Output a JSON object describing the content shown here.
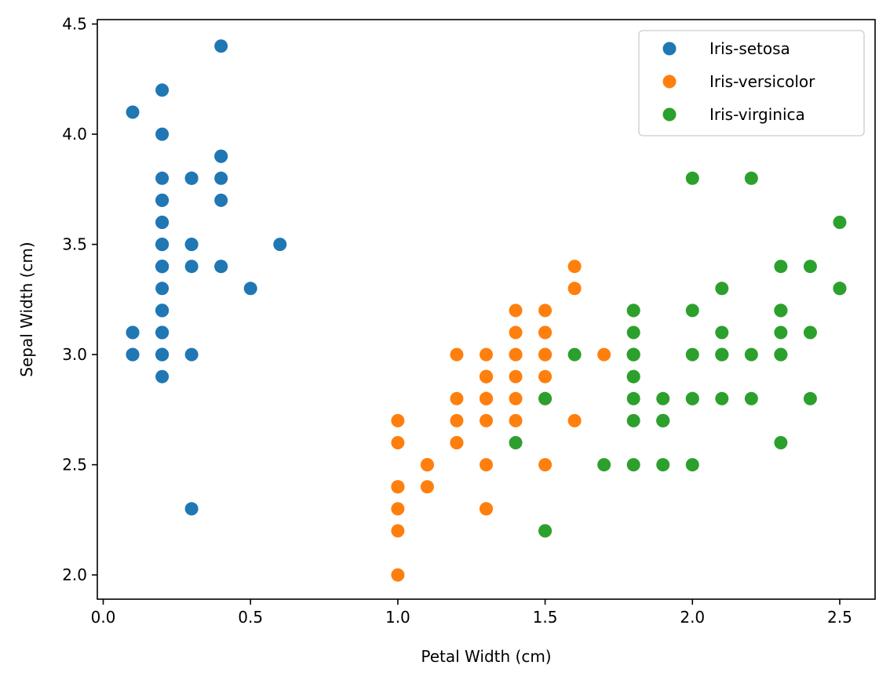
{
  "chart_data": {
    "type": "scatter",
    "title": "",
    "xlabel": "Petal Width (cm)",
    "ylabel": "Sepal Width (cm)",
    "xlim": [
      -0.02,
      2.62
    ],
    "ylim": [
      1.89,
      4.52
    ],
    "xticks": [
      "0.0",
      "0.5",
      "1.0",
      "1.5",
      "2.0",
      "2.5"
    ],
    "yticks": [
      "2.0",
      "2.5",
      "3.0",
      "3.5",
      "4.0",
      "4.5"
    ],
    "grid": false,
    "legend_position": "top-right",
    "series": [
      {
        "name": "Iris-setosa",
        "color": "#1f77b4",
        "x": [
          0.2,
          0.2,
          0.2,
          0.2,
          0.2,
          0.4,
          0.3,
          0.2,
          0.2,
          0.1,
          0.2,
          0.2,
          0.1,
          0.1,
          0.2,
          0.4,
          0.4,
          0.3,
          0.3,
          0.3,
          0.2,
          0.4,
          0.2,
          0.5,
          0.2,
          0.2,
          0.4,
          0.2,
          0.2,
          0.2,
          0.2,
          0.4,
          0.1,
          0.2,
          0.2,
          0.2,
          0.2,
          0.1,
          0.2,
          0.2,
          0.3,
          0.3,
          0.2,
          0.6,
          0.4,
          0.3,
          0.2,
          0.2,
          0.2,
          0.2
        ],
        "y": [
          3.5,
          3.0,
          3.2,
          3.1,
          3.6,
          3.9,
          3.4,
          3.4,
          2.9,
          3.1,
          3.7,
          3.4,
          3.0,
          3.0,
          4.0,
          4.4,
          3.9,
          3.5,
          3.8,
          3.8,
          3.4,
          3.7,
          3.6,
          3.3,
          3.4,
          3.0,
          3.4,
          3.5,
          3.4,
          3.2,
          3.1,
          3.4,
          4.1,
          4.2,
          3.1,
          3.2,
          3.5,
          3.1,
          3.0,
          3.4,
          3.5,
          2.3,
          3.2,
          3.5,
          3.8,
          3.0,
          3.8,
          3.2,
          3.7,
          3.3
        ]
      },
      {
        "name": "Iris-versicolor",
        "color": "#ff7f0e",
        "x": [
          1.4,
          1.5,
          1.5,
          1.3,
          1.5,
          1.3,
          1.6,
          1.0,
          1.3,
          1.4,
          1.0,
          1.5,
          1.0,
          1.4,
          1.3,
          1.4,
          1.5,
          1.0,
          1.5,
          1.1,
          1.8,
          1.3,
          1.5,
          1.2,
          1.3,
          1.4,
          1.4,
          1.7,
          1.5,
          1.0,
          1.1,
          1.0,
          1.2,
          1.6,
          1.5,
          1.6,
          1.5,
          1.3,
          1.3,
          1.3,
          1.2,
          1.4,
          1.2,
          1.0,
          1.3,
          1.2,
          1.3,
          1.3,
          1.1,
          1.3
        ],
        "y": [
          3.2,
          3.2,
          3.1,
          2.3,
          2.8,
          2.8,
          3.3,
          2.4,
          2.9,
          2.7,
          2.0,
          3.0,
          2.2,
          2.9,
          2.9,
          3.1,
          3.0,
          2.7,
          2.2,
          2.5,
          3.2,
          2.8,
          2.5,
          2.8,
          2.9,
          3.0,
          2.8,
          3.0,
          2.9,
          2.6,
          2.4,
          2.4,
          2.7,
          2.7,
          3.0,
          3.4,
          3.1,
          2.3,
          3.0,
          2.5,
          2.6,
          3.0,
          2.6,
          2.3,
          2.7,
          3.0,
          2.9,
          2.9,
          2.5,
          2.8
        ]
      },
      {
        "name": "Iris-virginica",
        "color": "#2ca02c",
        "x": [
          2.5,
          1.9,
          2.1,
          1.8,
          2.2,
          2.1,
          1.7,
          1.8,
          1.8,
          2.5,
          2.0,
          1.9,
          2.1,
          2.0,
          2.4,
          2.3,
          1.8,
          2.2,
          2.3,
          1.5,
          2.3,
          2.0,
          2.0,
          1.8,
          2.1,
          1.8,
          1.8,
          1.8,
          2.1,
          1.6,
          1.9,
          2.0,
          2.2,
          1.5,
          1.4,
          2.3,
          2.4,
          1.8,
          1.8,
          2.1,
          2.4,
          2.3,
          1.9,
          2.3,
          2.5,
          2.3,
          1.9,
          2.0,
          2.3,
          1.8
        ],
        "y": [
          3.3,
          2.7,
          3.0,
          2.9,
          3.0,
          3.0,
          2.5,
          2.9,
          2.5,
          3.6,
          3.2,
          2.7,
          3.0,
          2.5,
          2.8,
          3.2,
          3.0,
          3.8,
          2.6,
          2.2,
          3.2,
          2.8,
          2.8,
          2.7,
          3.3,
          3.2,
          2.8,
          3.0,
          2.8,
          3.0,
          2.8,
          3.8,
          2.8,
          2.8,
          2.6,
          3.0,
          3.4,
          3.1,
          3.0,
          3.1,
          3.1,
          3.1,
          2.7,
          3.2,
          3.3,
          3.0,
          2.5,
          3.0,
          3.4,
          3.0
        ]
      }
    ]
  }
}
